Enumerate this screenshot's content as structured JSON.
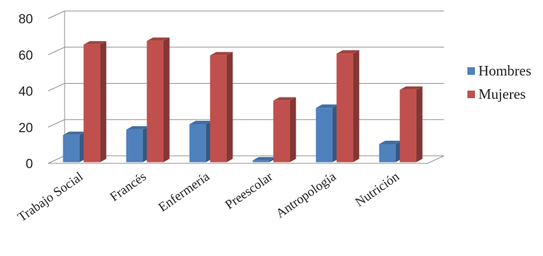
{
  "chart_data": {
    "type": "bar",
    "title": "",
    "xlabel": "",
    "ylabel": "",
    "ylim": [
      0,
      80
    ],
    "yticks": [
      0,
      20,
      40,
      60,
      80
    ],
    "grid": true,
    "legend_position": "right",
    "categories": [
      "Trabajo Social",
      "Francés",
      "Enfermería",
      "Preescolar",
      "Antropología",
      "Nutrición"
    ],
    "series": [
      {
        "name": "Hombres",
        "color": "#4f81bd",
        "values": [
          15,
          18,
          21,
          1,
          30,
          10
        ]
      },
      {
        "name": "Mujeres",
        "color": "#c0504d",
        "values": [
          65,
          67,
          59,
          34,
          60,
          40
        ]
      }
    ]
  }
}
